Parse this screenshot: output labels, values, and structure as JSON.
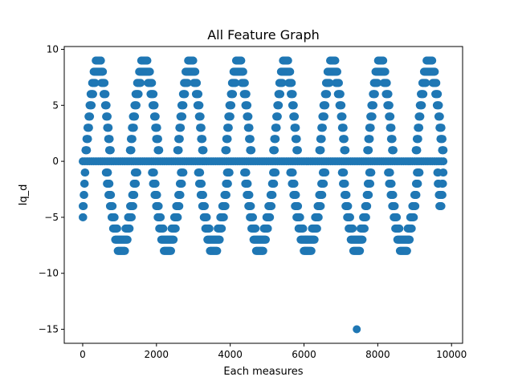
{
  "chart_data": {
    "type": "scatter",
    "title": "All Feature Graph",
    "xlabel": "Each measures",
    "ylabel": "Iq_d",
    "xlim": [
      -500,
      10300
    ],
    "ylim": [
      -16.25,
      10.25
    ],
    "x_ticks": [
      0,
      2000,
      4000,
      6000,
      8000,
      10000
    ],
    "y_ticks": [
      -15,
      -10,
      -5,
      0,
      5,
      10
    ],
    "x_tick_labels": [
      "0",
      "2000",
      "4000",
      "6000",
      "8000",
      "10000"
    ],
    "y_tick_labels": [
      "−15",
      "−10",
      "−5",
      "0",
      "5",
      "10"
    ],
    "grid": false,
    "marker_color": "#1f77b4",
    "x_range": [
      0,
      9800
    ],
    "baseline_value": 0,
    "positive_peaks": [
      {
        "x_start": 60,
        "x_end": 780,
        "peak": 9
      },
      {
        "x_start": 1250,
        "x_end": 2100,
        "peak": 9
      },
      {
        "x_start": 2550,
        "x_end": 3300,
        "peak": 9
      },
      {
        "x_start": 3850,
        "x_end": 4600,
        "peak": 9
      },
      {
        "x_start": 5150,
        "x_end": 5850,
        "peak": 9
      },
      {
        "x_start": 6400,
        "x_end": 7150,
        "peak": 9
      },
      {
        "x_start": 7700,
        "x_end": 8450,
        "peak": 9
      },
      {
        "x_start": 9000,
        "x_end": 9800,
        "peak": 9
      }
    ],
    "negative_troughs": [
      {
        "x_start": 0,
        "x_end": 80,
        "trough": -5
      },
      {
        "x_start": 600,
        "x_end": 1500,
        "trough": -8
      },
      {
        "x_start": 1850,
        "x_end": 2750,
        "trough": -8
      },
      {
        "x_start": 3100,
        "x_end": 4000,
        "trough": -8
      },
      {
        "x_start": 4350,
        "x_end": 5250,
        "trough": -8
      },
      {
        "x_start": 5600,
        "x_end": 6600,
        "trough": -8
      },
      {
        "x_start": 7000,
        "x_end": 7850,
        "trough": -8
      },
      {
        "x_start": 8250,
        "x_end": 9150,
        "trough": -8
      },
      {
        "x_start": 9600,
        "x_end": 9800,
        "trough": -4
      }
    ],
    "outliers": [
      {
        "x": 7430,
        "y": -15
      }
    ]
  }
}
